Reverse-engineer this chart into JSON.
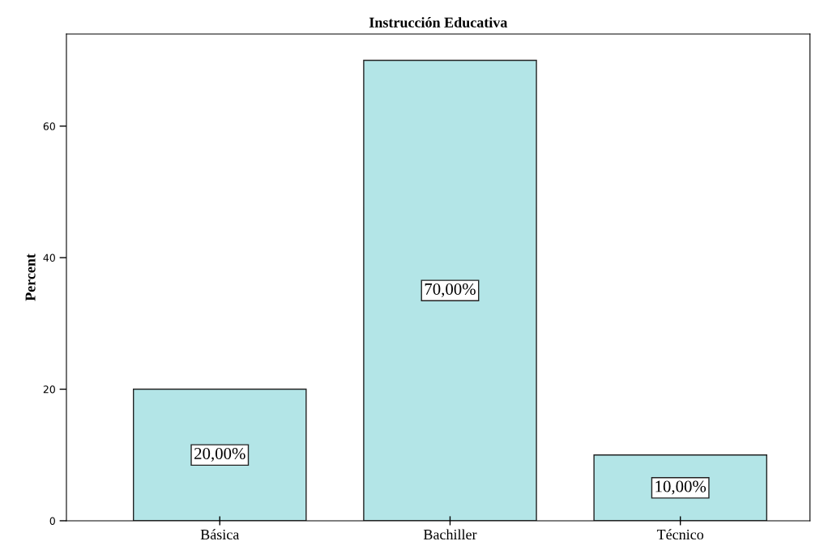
{
  "chart_data": {
    "type": "bar",
    "title": "Instrucción Educativa",
    "ylabel": "Percent",
    "categories": [
      "Básica",
      "Bachiller",
      "Técnico"
    ],
    "values": [
      20,
      70,
      10
    ],
    "color": "#b3e5e7",
    "value_labels": [
      "20,00%",
      "70,00%",
      "10,00%"
    ],
    "ylim": [
      0,
      74
    ],
    "yticks": [
      0,
      20,
      40,
      60
    ],
    "grid": false,
    "legend": false
  }
}
